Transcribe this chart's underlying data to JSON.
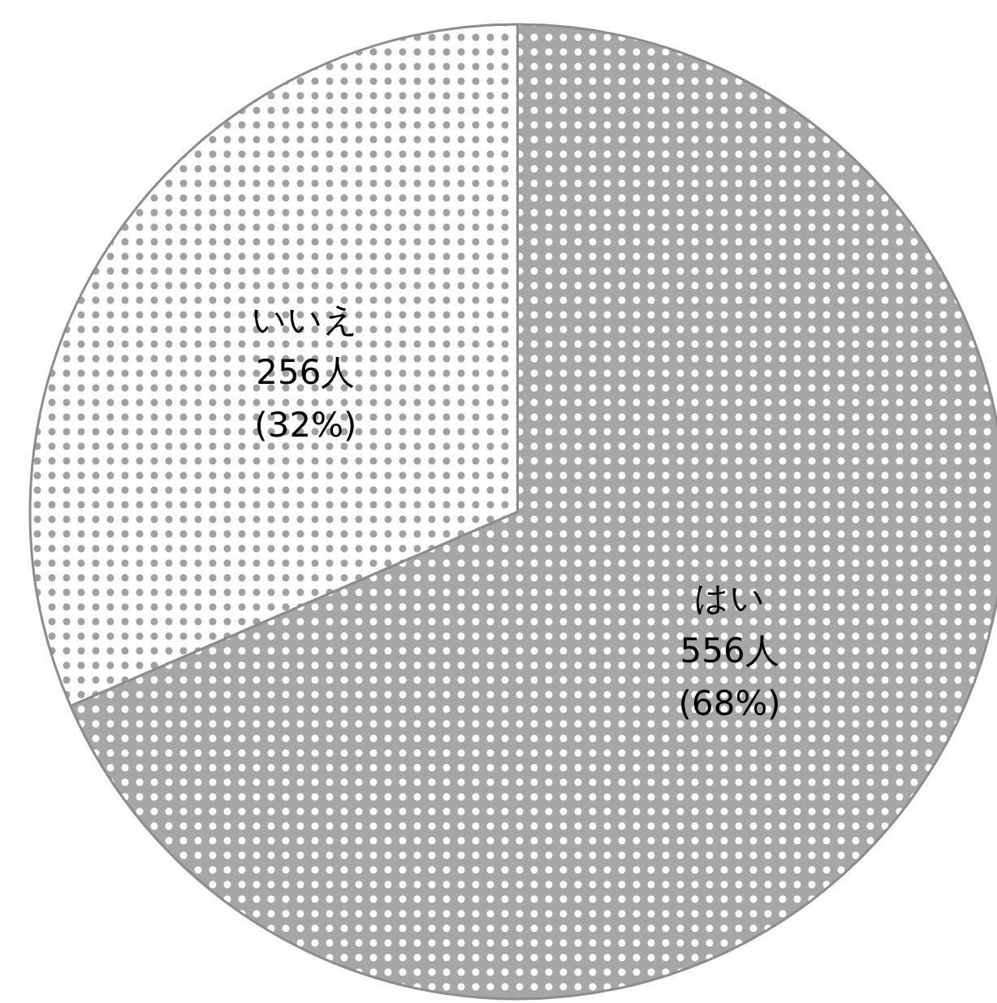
{
  "chart_data": {
    "type": "pie",
    "categories": [
      "はい",
      "いいえ"
    ],
    "values": [
      556,
      256
    ],
    "colors": [
      "#a6a6a6",
      "#ffffff"
    ],
    "value_labels": [
      "556人\n(68%)",
      "256人\n(32%)"
    ]
  }
}
